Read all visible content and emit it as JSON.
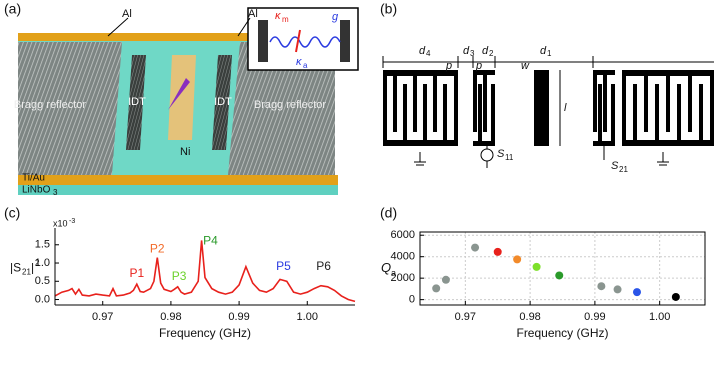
{
  "panels": {
    "a": "(a)",
    "b": "(b)",
    "c": "(c)",
    "d": "(d)"
  },
  "diagram_a": {
    "al_left": "Al",
    "al_right": "Al",
    "bragg_left": "Bragg reflector",
    "bragg_right": "Bragg reflector",
    "idt_left": "IDT",
    "idt_right": "IDT",
    "ni": "Ni",
    "tiau": "Ti/Au",
    "linbo": {
      "main": "LiNbO",
      "sub": "3"
    },
    "inset": {
      "kappa_m": {
        "symbol": "κ",
        "sub": "m"
      },
      "g": "g",
      "kappa_a": {
        "symbol": "κ",
        "sub": "a"
      }
    }
  },
  "diagram_b": {
    "d4": {
      "symbol": "d",
      "sub": "4"
    },
    "d3": {
      "symbol": "d",
      "sub": "3"
    },
    "d2": {
      "symbol": "d",
      "sub": "2"
    },
    "d1": {
      "symbol": "d",
      "sub": "1"
    },
    "p_left": "p",
    "p_right": "p",
    "w": "w",
    "l": "l",
    "s11": {
      "symbol": "S",
      "sub": "11"
    },
    "s21": {
      "symbol": "S",
      "sub": "21"
    }
  },
  "chart_data": [
    {
      "type": "line",
      "color": "#e8211c",
      "ylabel": {
        "pre": "|S",
        "sub": "21",
        "mid": "|",
        "sup": "2"
      },
      "xlabel": "Frequency (GHz)",
      "multiplier": {
        "base": "x10",
        "exp": "-3"
      },
      "x": [
        0.963,
        0.964,
        0.965,
        0.9655,
        0.966,
        0.9665,
        0.967,
        0.968,
        0.969,
        0.97,
        0.971,
        0.9715,
        0.972,
        0.973,
        0.974,
        0.9745,
        0.975,
        0.9755,
        0.976,
        0.977,
        0.9775,
        0.978,
        0.9785,
        0.979,
        0.98,
        0.9805,
        0.981,
        0.9815,
        0.982,
        0.983,
        0.984,
        0.9845,
        0.985,
        0.986,
        0.987,
        0.988,
        0.989,
        0.99,
        0.991,
        0.992,
        0.993,
        0.994,
        0.995,
        0.996,
        0.997,
        0.998,
        0.999,
        1.0,
        1.001,
        1.002,
        1.003,
        1.004,
        1.005,
        1.006,
        1.007
      ],
      "values": [
        0.1,
        0.2,
        0.25,
        0.3,
        0.15,
        0.28,
        0.12,
        0.1,
        0.15,
        0.12,
        0.1,
        0.3,
        0.1,
        0.12,
        0.18,
        0.25,
        0.42,
        0.22,
        0.2,
        0.3,
        0.5,
        1.15,
        0.45,
        0.28,
        0.22,
        0.28,
        0.35,
        0.2,
        0.15,
        0.2,
        0.5,
        1.62,
        0.6,
        0.3,
        0.2,
        0.15,
        0.2,
        0.4,
        0.9,
        0.45,
        0.25,
        0.2,
        0.3,
        0.55,
        0.5,
        0.2,
        0.15,
        0.2,
        0.3,
        0.38,
        0.35,
        0.25,
        0.1,
        0.0,
        -0.05
      ],
      "xlim": [
        0.963,
        1.007
      ],
      "ylim": [
        -0.15,
        1.85
      ],
      "xticks": [
        0.97,
        0.98,
        0.99,
        {
          "value": 1.0,
          "label": "1.00"
        }
      ],
      "yticks": [
        {
          "value": 0,
          "label": "0.0"
        },
        0.5,
        {
          "value": 1,
          "label": "1.0"
        },
        1.5
      ],
      "grid": false,
      "annotations": [
        {
          "text": "P1",
          "color": "#e8211c"
        },
        {
          "text": "P2",
          "color": "#f26b2a"
        },
        {
          "text": "P3",
          "color": "#6bd12a"
        },
        {
          "text": "P4",
          "color": "#2a9a2a"
        },
        {
          "text": "P5",
          "color": "#2a3ae0"
        },
        {
          "text": "P6",
          "color": "#222222"
        }
      ]
    },
    {
      "type": "scatter",
      "ylabel": {
        "pre": "Q",
        "sub": "a"
      },
      "xlabel": "Frequency (GHz)",
      "x": [
        0.9655,
        0.967,
        0.9715,
        0.975,
        0.978,
        0.981,
        0.9845,
        0.991,
        0.9935,
        0.9965,
        1.0025
      ],
      "values": [
        1050,
        1850,
        4850,
        4450,
        3750,
        3050,
        2250,
        1250,
        950,
        700,
        250
      ],
      "colors": [
        "#8a9590",
        "#8a9590",
        "#8a9590",
        "#e8211c",
        "#f28a2a",
        "#7de02a",
        "#2a9a2a",
        "#8a9590",
        "#8a9590",
        "#2a55e8",
        "#000000"
      ],
      "xlim": [
        0.963,
        1.007
      ],
      "ylim": [
        -500,
        6300
      ],
      "xticks": [
        0.97,
        0.98,
        0.99,
        {
          "value": 1.0,
          "label": "1.00"
        }
      ],
      "yticks": [
        0,
        2000,
        4000,
        6000
      ],
      "grid": true
    }
  ]
}
